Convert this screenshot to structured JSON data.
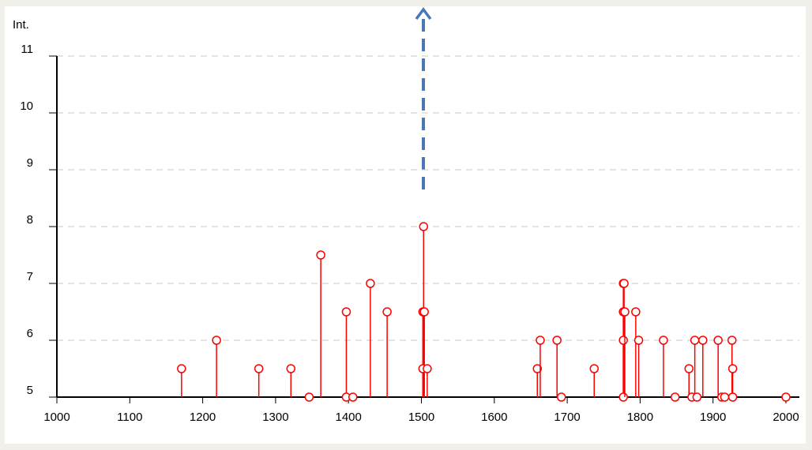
{
  "chart_data": {
    "type": "stem",
    "y_label": "Int.",
    "color": "#ff0000",
    "x": [
      1171,
      1219,
      1277,
      1321,
      1346,
      1362,
      1397,
      1397,
      1406,
      1430,
      1453,
      1503,
      1502,
      1504,
      1502,
      1508,
      1659,
      1663,
      1686,
      1692,
      1737,
      1777,
      1778,
      1777,
      1777,
      1777,
      1779,
      1794,
      1798,
      1832,
      1848,
      1867,
      1871,
      1875,
      1878,
      1886,
      1907,
      1912,
      1916,
      1926,
      1927,
      1927,
      2000
    ],
    "values": [
      5.5,
      6,
      5.5,
      5.5,
      5,
      7.5,
      6.5,
      5,
      5,
      7,
      6.5,
      8,
      6.5,
      6.5,
      5.5,
      5.5,
      5.5,
      6,
      6,
      5,
      5.5,
      7,
      7,
      6.5,
      6,
      5,
      6.5,
      6.5,
      6,
      6,
      5,
      5.5,
      5,
      6,
      5,
      6,
      6,
      5,
      5,
      6,
      5.5,
      5,
      5
    ],
    "xlim": [
      1000,
      2000
    ],
    "ylim": [
      5,
      11
    ],
    "xticks": [
      1000,
      1100,
      1200,
      1300,
      1400,
      1500,
      1600,
      1700,
      1800,
      1900,
      2000
    ],
    "yticks": [
      5,
      6,
      7,
      8,
      9,
      10,
      11
    ],
    "grid": true
  }
}
